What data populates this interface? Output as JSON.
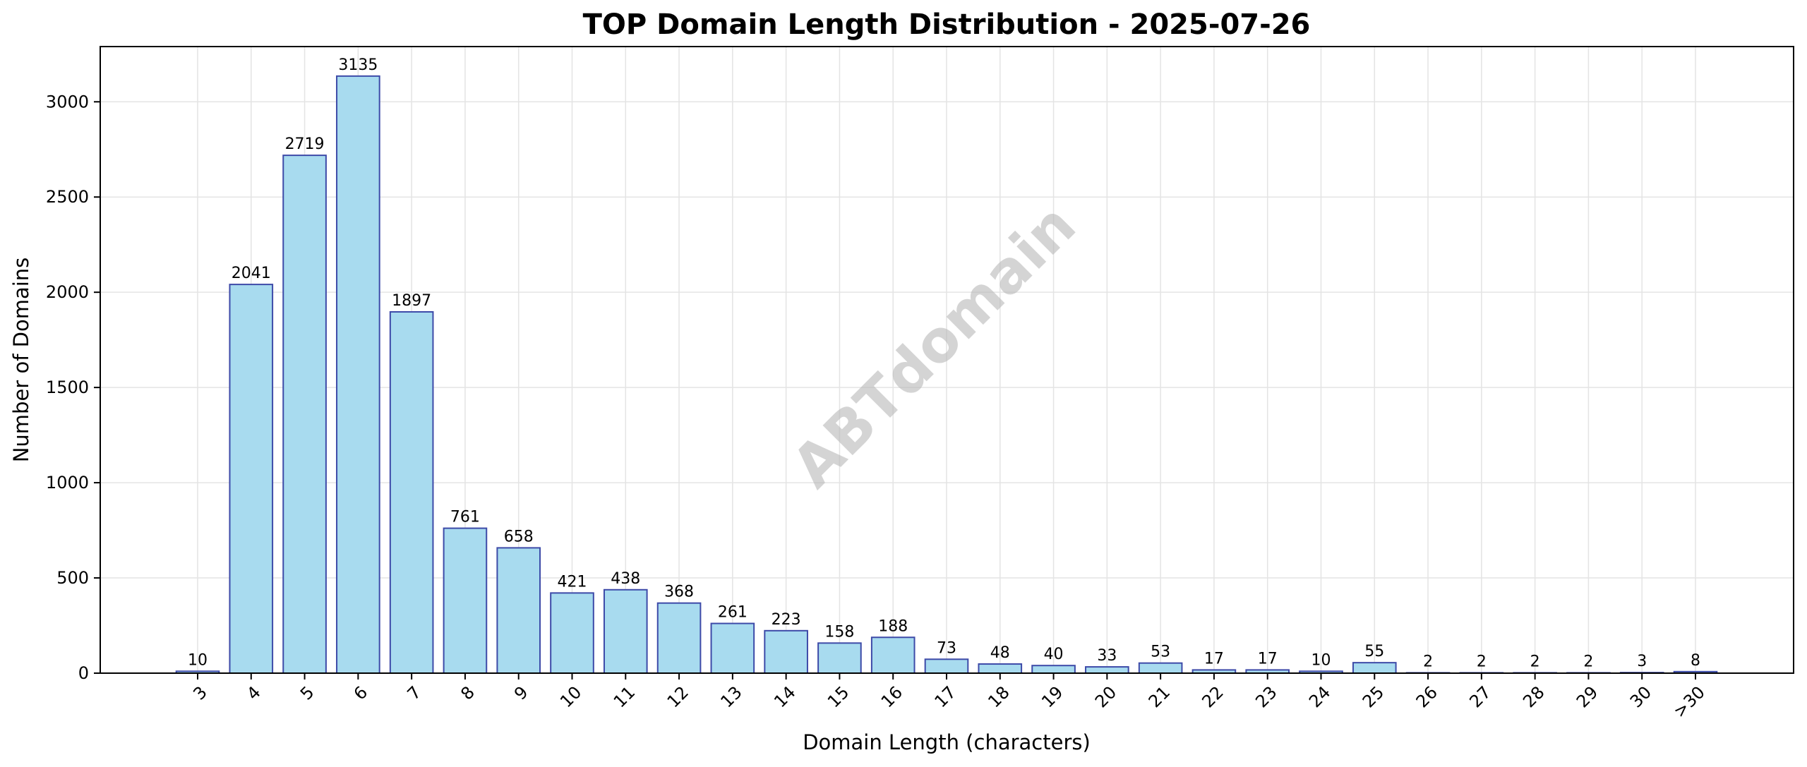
{
  "chart_data": {
    "type": "bar",
    "title": "TOP Domain Length Distribution - 2025-07-26",
    "xlabel": "Domain Length (characters)",
    "ylabel": "Number of Domains",
    "categories": [
      "3",
      "4",
      "5",
      "6",
      "7",
      "8",
      "9",
      "10",
      "11",
      "12",
      "13",
      "14",
      "15",
      "16",
      "17",
      "18",
      "19",
      "20",
      "21",
      "22",
      "23",
      "24",
      "25",
      "26",
      "27",
      "28",
      "29",
      "30",
      ">30"
    ],
    "values": [
      10,
      2041,
      2719,
      3135,
      1897,
      761,
      658,
      421,
      438,
      368,
      261,
      223,
      158,
      188,
      73,
      48,
      40,
      33,
      53,
      17,
      17,
      10,
      55,
      2,
      2,
      2,
      2,
      3,
      8
    ],
    "data_labels": [
      "10",
      "2041",
      "2719",
      "3135",
      "1897",
      "761",
      "658",
      "421",
      "438",
      "368",
      "261",
      "223",
      "158",
      "188",
      "73",
      "48",
      "40",
      "33",
      "53",
      "17",
      "17",
      "10",
      "55",
      "2",
      "2",
      "2",
      "2",
      "3",
      "8"
    ],
    "ylim": [
      0,
      3290
    ],
    "yticks": [
      0,
      500,
      1000,
      1500,
      2000,
      2500,
      3000
    ],
    "ytick_labels": [
      "0",
      "500",
      "1000",
      "1500",
      "2000",
      "2500",
      "3000"
    ],
    "grid": true,
    "legend": "none",
    "colors": {
      "bar_fill": "#a8dbef",
      "bar_edge": "#3d4aa8",
      "grid": "#e4e4e4",
      "axis": "#000000"
    }
  },
  "watermark": "ABTdomain"
}
